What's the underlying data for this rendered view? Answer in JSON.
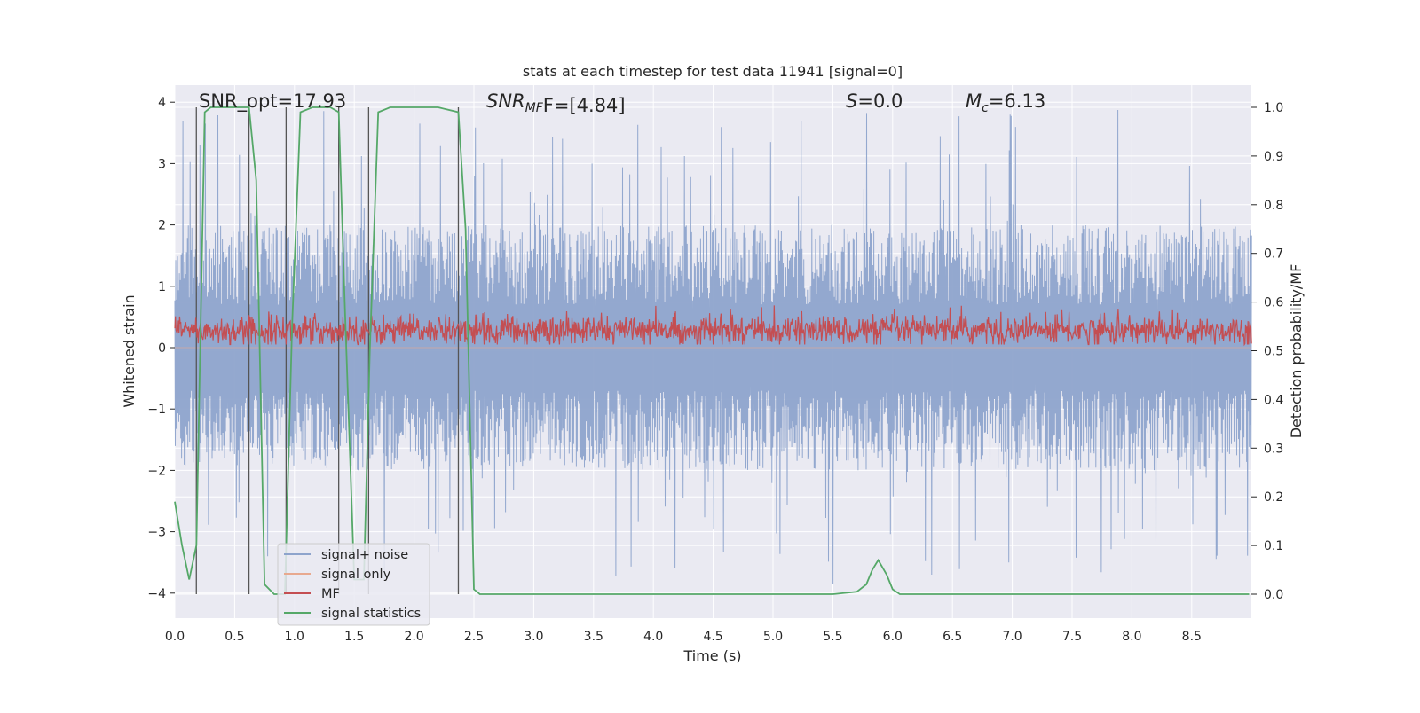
{
  "chart_data": {
    "type": "line",
    "title": "stats at each timestep for test data 11941 [signal=0]",
    "xlabel": "Time (s)",
    "ylabel_left": "Whitened strain",
    "ylabel_right": "Detection probability/MF",
    "xlim": [
      0.0,
      9.0
    ],
    "ylim_left": [
      -4.4,
      4.3
    ],
    "ylim_right": [
      -0.05,
      1.05
    ],
    "x_ticks": [
      0.0,
      0.5,
      1.0,
      1.5,
      2.0,
      2.5,
      3.0,
      3.5,
      4.0,
      4.5,
      5.0,
      5.5,
      6.0,
      6.5,
      7.0,
      7.5,
      8.0,
      8.5
    ],
    "x_tick_labels": [
      "0.0",
      "0.5",
      "1.0",
      "1.5",
      "2.0",
      "2.5",
      "3.0",
      "3.5",
      "4.0",
      "4.5",
      "5.0",
      "5.5",
      "6.0",
      "6.5",
      "7.0",
      "7.5",
      "8.0",
      "8.5"
    ],
    "y_left_ticks": [
      4,
      3,
      2,
      1,
      0,
      -1,
      -2,
      -3,
      -4
    ],
    "y_left_tick_labels": [
      "4",
      "3",
      "2",
      "1",
      "0",
      "−1",
      "−2",
      "−3",
      "−4"
    ],
    "y_right_ticks": [
      1.0,
      0.9,
      0.8,
      0.7,
      0.6,
      0.5,
      0.4,
      0.3,
      0.2,
      0.1,
      0.0
    ],
    "y_right_tick_labels": [
      "1.0",
      "0.9",
      "0.8",
      "0.7",
      "0.6",
      "0.5",
      "0.4",
      "0.3",
      "0.2",
      "0.1",
      "0.0"
    ],
    "grid": true,
    "legend_position": "lower-left",
    "annotations": {
      "snr_opt": "SNR_opt=17.93",
      "snr_mf_name": "SNR",
      "snr_mf_sub": "MF",
      "snr_mf_value": "F=[4.84]",
      "s_name": "S",
      "s_value": "=0.0",
      "mc_name": "M",
      "mc_sub": "c",
      "mc_value": "=6.13"
    },
    "series": [
      {
        "name": "signal+ noise",
        "color": "#8ea4cc",
        "axis": "left",
        "description": "whitened noise, roughly uniform amplitude",
        "envelope": {
          "typical_max": 2.0,
          "typical_min": -2.0,
          "peak_max": 3.9,
          "peak_min": -4.0
        }
      },
      {
        "name": "signal only",
        "color": "#e8a98f",
        "axis": "left",
        "values": "zero (signal=0)"
      },
      {
        "name": "MF",
        "color": "#c44e52",
        "axis": "left",
        "envelope": {
          "typical_max": 0.55,
          "typical_min": 0.05,
          "peak_max": 1.0
        }
      },
      {
        "name": "signal statistics",
        "color": "#55a868",
        "axis": "right",
        "x": [
          0.0,
          0.06,
          0.12,
          0.18,
          0.25,
          0.3,
          0.4,
          0.55,
          0.62,
          0.68,
          0.75,
          0.83,
          0.92,
          0.98,
          1.05,
          1.15,
          1.3,
          1.37,
          1.42,
          1.5,
          1.58,
          1.63,
          1.7,
          1.8,
          2.0,
          2.2,
          2.37,
          2.43,
          2.5,
          2.55,
          2.7,
          3.5,
          4.5,
          5.5,
          5.7,
          5.78,
          5.83,
          5.88,
          5.95,
          6.0,
          6.06,
          6.15,
          7.0,
          8.0,
          8.98
        ],
        "y": [
          0.19,
          0.1,
          0.03,
          0.1,
          0.99,
          1.0,
          1.0,
          1.0,
          1.0,
          0.85,
          0.02,
          0.0,
          0.0,
          0.55,
          0.99,
          1.0,
          1.0,
          0.99,
          0.6,
          0.03,
          0.03,
          0.5,
          0.99,
          1.0,
          1.0,
          1.0,
          0.99,
          0.75,
          0.01,
          0.0,
          0.0,
          0.0,
          0.0,
          0.0,
          0.005,
          0.02,
          0.05,
          0.07,
          0.04,
          0.01,
          0.0,
          0.0,
          0.0,
          0.0,
          0.0
        ]
      }
    ],
    "vertical_markers": {
      "color": "#555555",
      "x": [
        0.18,
        0.62,
        0.93,
        1.37,
        1.62,
        2.37
      ],
      "y_top_right_axis": 1.0
    }
  }
}
